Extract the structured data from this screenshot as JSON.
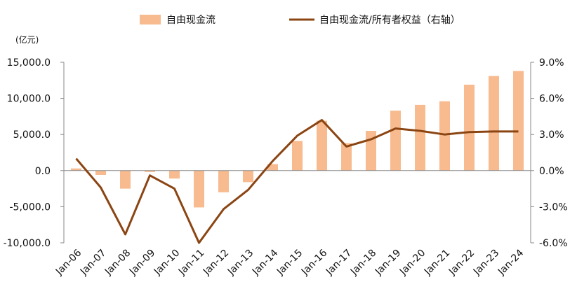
{
  "chart_data": {
    "type": "bar+line",
    "title": "",
    "xlabel": "",
    "ylabel": "",
    "left_axis": {
      "unit": "(亿元)",
      "ylim": [
        -10000,
        15000
      ],
      "ticks": [
        -10000,
        -5000,
        0,
        5000,
        10000,
        15000
      ],
      "tick_labels": [
        "-10,000.0",
        "-5,000.0",
        "0.0",
        "5,000.0",
        "10,000.0",
        "15,000.0"
      ]
    },
    "right_axis": {
      "ylim": [
        -6.0,
        9.0
      ],
      "ticks": [
        -6,
        -3,
        0,
        3,
        6,
        9
      ],
      "tick_labels": [
        "-6.0%",
        "-3.0%",
        "0.0%",
        "3.0%",
        "6.0%",
        "9.0%"
      ]
    },
    "categories": [
      "Jan-06",
      "Jan-07",
      "Jan-08",
      "Jan-09",
      "Jan-10",
      "Jan-11",
      "Jan-12",
      "Jan-13",
      "Jan-14",
      "Jan-15",
      "Jan-16",
      "Jan-17",
      "Jan-18",
      "Jan-19",
      "Jan-20",
      "Jan-21",
      "Jan-22",
      "Jan-23",
      "Jan-24"
    ],
    "series": [
      {
        "name": "自由现金流",
        "type": "bar",
        "axis": "left",
        "color": "#F7BB8F",
        "values": [
          300,
          -600,
          -2500,
          -200,
          -1100,
          -5100,
          -3000,
          -1600,
          900,
          4100,
          6900,
          3800,
          5500,
          8300,
          9100,
          9600,
          11900,
          13100,
          13800
        ]
      },
      {
        "name": "自由现金流/所有者权益（右轴）",
        "type": "line",
        "axis": "right",
        "color": "#8B4513",
        "values": [
          1.0,
          -1.4,
          -5.3,
          -0.4,
          -1.5,
          -6.0,
          -3.2,
          -1.6,
          0.8,
          2.9,
          4.2,
          2.0,
          2.6,
          3.5,
          3.3,
          3.0,
          3.2,
          3.25,
          3.25
        ]
      }
    ],
    "legend": "top-center",
    "grid": false
  }
}
